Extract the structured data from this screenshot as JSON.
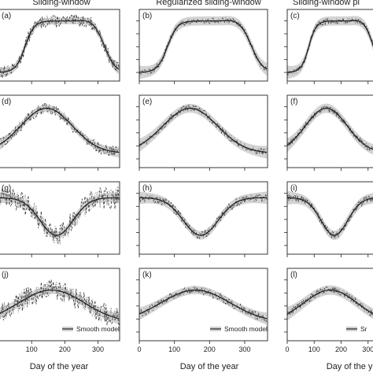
{
  "chart_data": {
    "type": "line",
    "column_titles": [
      "Sliding-window",
      "Regularized sliding-window",
      "Sliding-window pl"
    ],
    "xlabel": "Day of the year",
    "x_ticks": [
      0,
      100,
      200,
      300
    ],
    "xlim": [
      0,
      365
    ],
    "ylim": [
      0,
      1
    ],
    "legend_label": "Smooth model",
    "legend_label_clipped": "Sr",
    "panels": [
      {
        "label": "(a)",
        "shape": "plateau",
        "noise": 0.09,
        "legend": false
      },
      {
        "label": "(b)",
        "shape": "plateau",
        "noise": 0.04,
        "legend": false
      },
      {
        "label": "(c)",
        "shape": "plateau",
        "noise": 0.04,
        "legend": false
      },
      {
        "label": "(d)",
        "shape": "hump",
        "noise": 0.08,
        "legend": false
      },
      {
        "label": "(e)",
        "shape": "hump",
        "noise": 0.05,
        "legend": false
      },
      {
        "label": "(f)",
        "shape": "hump",
        "noise": 0.04,
        "legend": false
      },
      {
        "label": "(g)",
        "shape": "dip",
        "noise": 0.16,
        "legend": false
      },
      {
        "label": "(h)",
        "shape": "dip",
        "noise": 0.06,
        "legend": false
      },
      {
        "label": "(i)",
        "shape": "dip",
        "noise": 0.05,
        "legend": false
      },
      {
        "label": "(j)",
        "shape": "broad",
        "noise": 0.15,
        "legend": true
      },
      {
        "label": "(k)",
        "shape": "broad",
        "noise": 0.06,
        "legend": true
      },
      {
        "label": "(l)",
        "shape": "broad",
        "noise": 0.05,
        "legend": true
      }
    ],
    "colors": {
      "band": "#d3d3d3",
      "smooth": "#222222",
      "dashed": "#333333",
      "dotted": "#666666"
    }
  }
}
